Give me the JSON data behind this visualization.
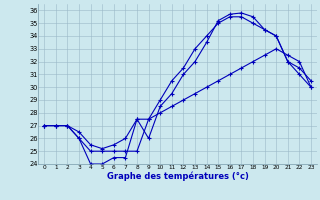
{
  "xlabel": "Graphe des températures (°c)",
  "xlim": [
    -0.5,
    23.5
  ],
  "ylim": [
    24,
    36.5
  ],
  "yticks": [
    24,
    25,
    26,
    27,
    28,
    29,
    30,
    31,
    32,
    33,
    34,
    35,
    36
  ],
  "xticks": [
    0,
    1,
    2,
    3,
    4,
    5,
    6,
    7,
    8,
    9,
    10,
    11,
    12,
    13,
    14,
    15,
    16,
    17,
    18,
    19,
    20,
    21,
    22,
    23
  ],
  "bg_color": "#cce8ee",
  "line_color": "#0000bb",
  "curve1_x": [
    0,
    1,
    2,
    3,
    4,
    5,
    6,
    7,
    8,
    9,
    10,
    11,
    12,
    13,
    14,
    15,
    16,
    17,
    18,
    19,
    20,
    21,
    22,
    23
  ],
  "curve1_y": [
    27,
    27,
    27,
    26,
    24,
    24,
    24.5,
    24.5,
    27.5,
    26,
    28.5,
    29.5,
    31,
    32,
    33.5,
    35.2,
    35.7,
    35.8,
    35.5,
    34.5,
    34,
    32,
    31,
    30
  ],
  "curve2_x": [
    0,
    1,
    2,
    3,
    4,
    5,
    6,
    7,
    8,
    9,
    10,
    11,
    12,
    13,
    14,
    15,
    16,
    17,
    18,
    19,
    20,
    21,
    22,
    23
  ],
  "curve2_y": [
    27,
    27,
    27,
    26.5,
    25.5,
    25.2,
    25.5,
    26,
    27.5,
    27.5,
    28,
    28.5,
    29,
    29.5,
    30,
    30.5,
    31,
    31.5,
    32,
    32.5,
    33,
    32.5,
    32,
    30
  ],
  "curve3_x": [
    0,
    1,
    2,
    3,
    4,
    5,
    6,
    7,
    8,
    9,
    10,
    11,
    12,
    13,
    14,
    15,
    16,
    17,
    18,
    19,
    20,
    21,
    22,
    23
  ],
  "curve3_y": [
    27,
    27,
    27,
    26,
    25,
    25,
    25,
    25,
    25,
    27.5,
    29,
    30.5,
    31.5,
    33,
    34,
    35,
    35.5,
    35.5,
    35.0,
    34.5,
    34,
    32,
    31.5,
    30.5
  ]
}
